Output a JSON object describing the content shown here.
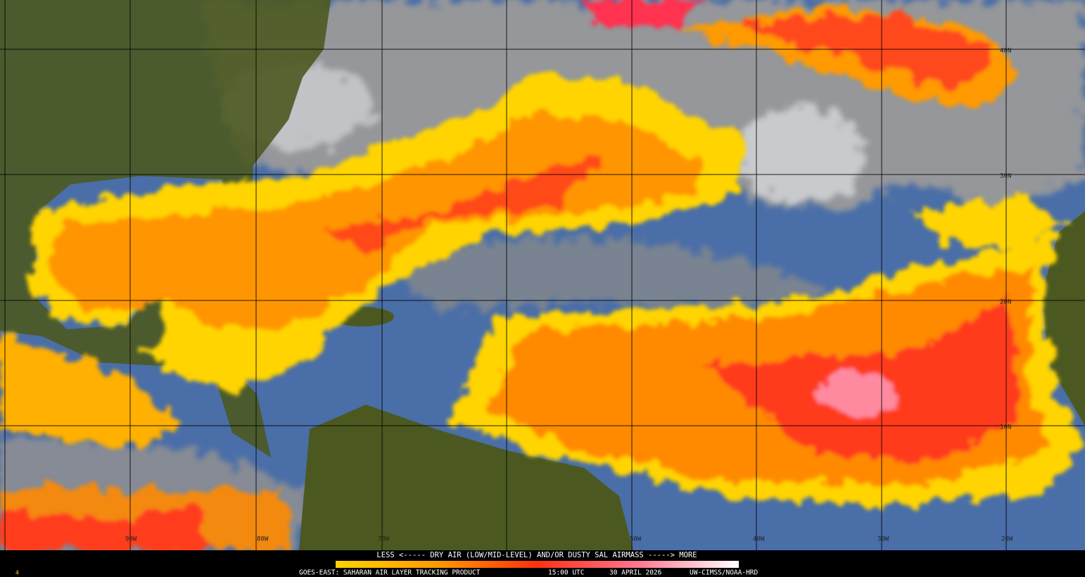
{
  "map": {
    "grid_labels": {
      "latitude": [
        "40N",
        "30N",
        "20N",
        "10N"
      ],
      "longitude": [
        "90W",
        "80W",
        "70W",
        "50W",
        "40W",
        "30W",
        "20W"
      ]
    },
    "legend": {
      "caption": "LESS <----- DRY AIR (LOW/MID-LEVEL) AND/OR DUSTY SAL AIRMASS -----> MORE"
    },
    "footer": {
      "frame": "4",
      "product": "GOES-EAST: SAHARAN AIR LAYER TRACKING PRODUCT",
      "time": "15:00 UTC",
      "date": "30 APRIL 2026",
      "credit": "UW-CIMSS/NOAA-HRD"
    }
  }
}
